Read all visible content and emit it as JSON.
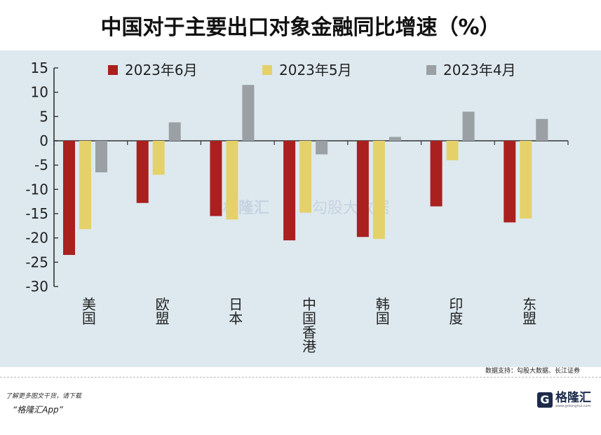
{
  "title": "中国对于主要出口对象金融同比增速（%）",
  "chart_data": {
    "type": "bar",
    "categories": [
      "美国",
      "欧盟",
      "日本",
      "中国香港",
      "韩国",
      "印度",
      "东盟"
    ],
    "series": [
      {
        "name": "2023年6月",
        "color": "#a9201f",
        "values": [
          -23.5,
          -12.8,
          -15.5,
          -20.5,
          -19.8,
          -13.5,
          -16.8
        ]
      },
      {
        "name": "2023年5月",
        "color": "#e4d16a",
        "values": [
          -18.2,
          -7.0,
          -16.2,
          -14.8,
          -20.2,
          -4.0,
          -16.0
        ]
      },
      {
        "name": "2023年4月",
        "color": "#9aa0a4",
        "values": [
          -6.5,
          3.8,
          11.5,
          -2.8,
          0.8,
          6.0,
          4.5
        ]
      }
    ],
    "ylim": [
      -30,
      15
    ],
    "yticks": [
      15,
      10,
      5,
      0,
      -5,
      -10,
      -15,
      -20,
      -25,
      -30
    ],
    "xlabel": "",
    "ylabel": "",
    "grid": false,
    "legend_position": "top"
  },
  "source": "数据支持：勾股大数据、长江证券",
  "footer": {
    "note": "了解更多图文干货，请下载",
    "app": "“格隆汇App”"
  },
  "brand": {
    "logo": "G",
    "name": "格隆汇",
    "url": "www.gelonghui.com"
  },
  "watermark": [
    "格隆汇",
    "勾股大数据"
  ]
}
